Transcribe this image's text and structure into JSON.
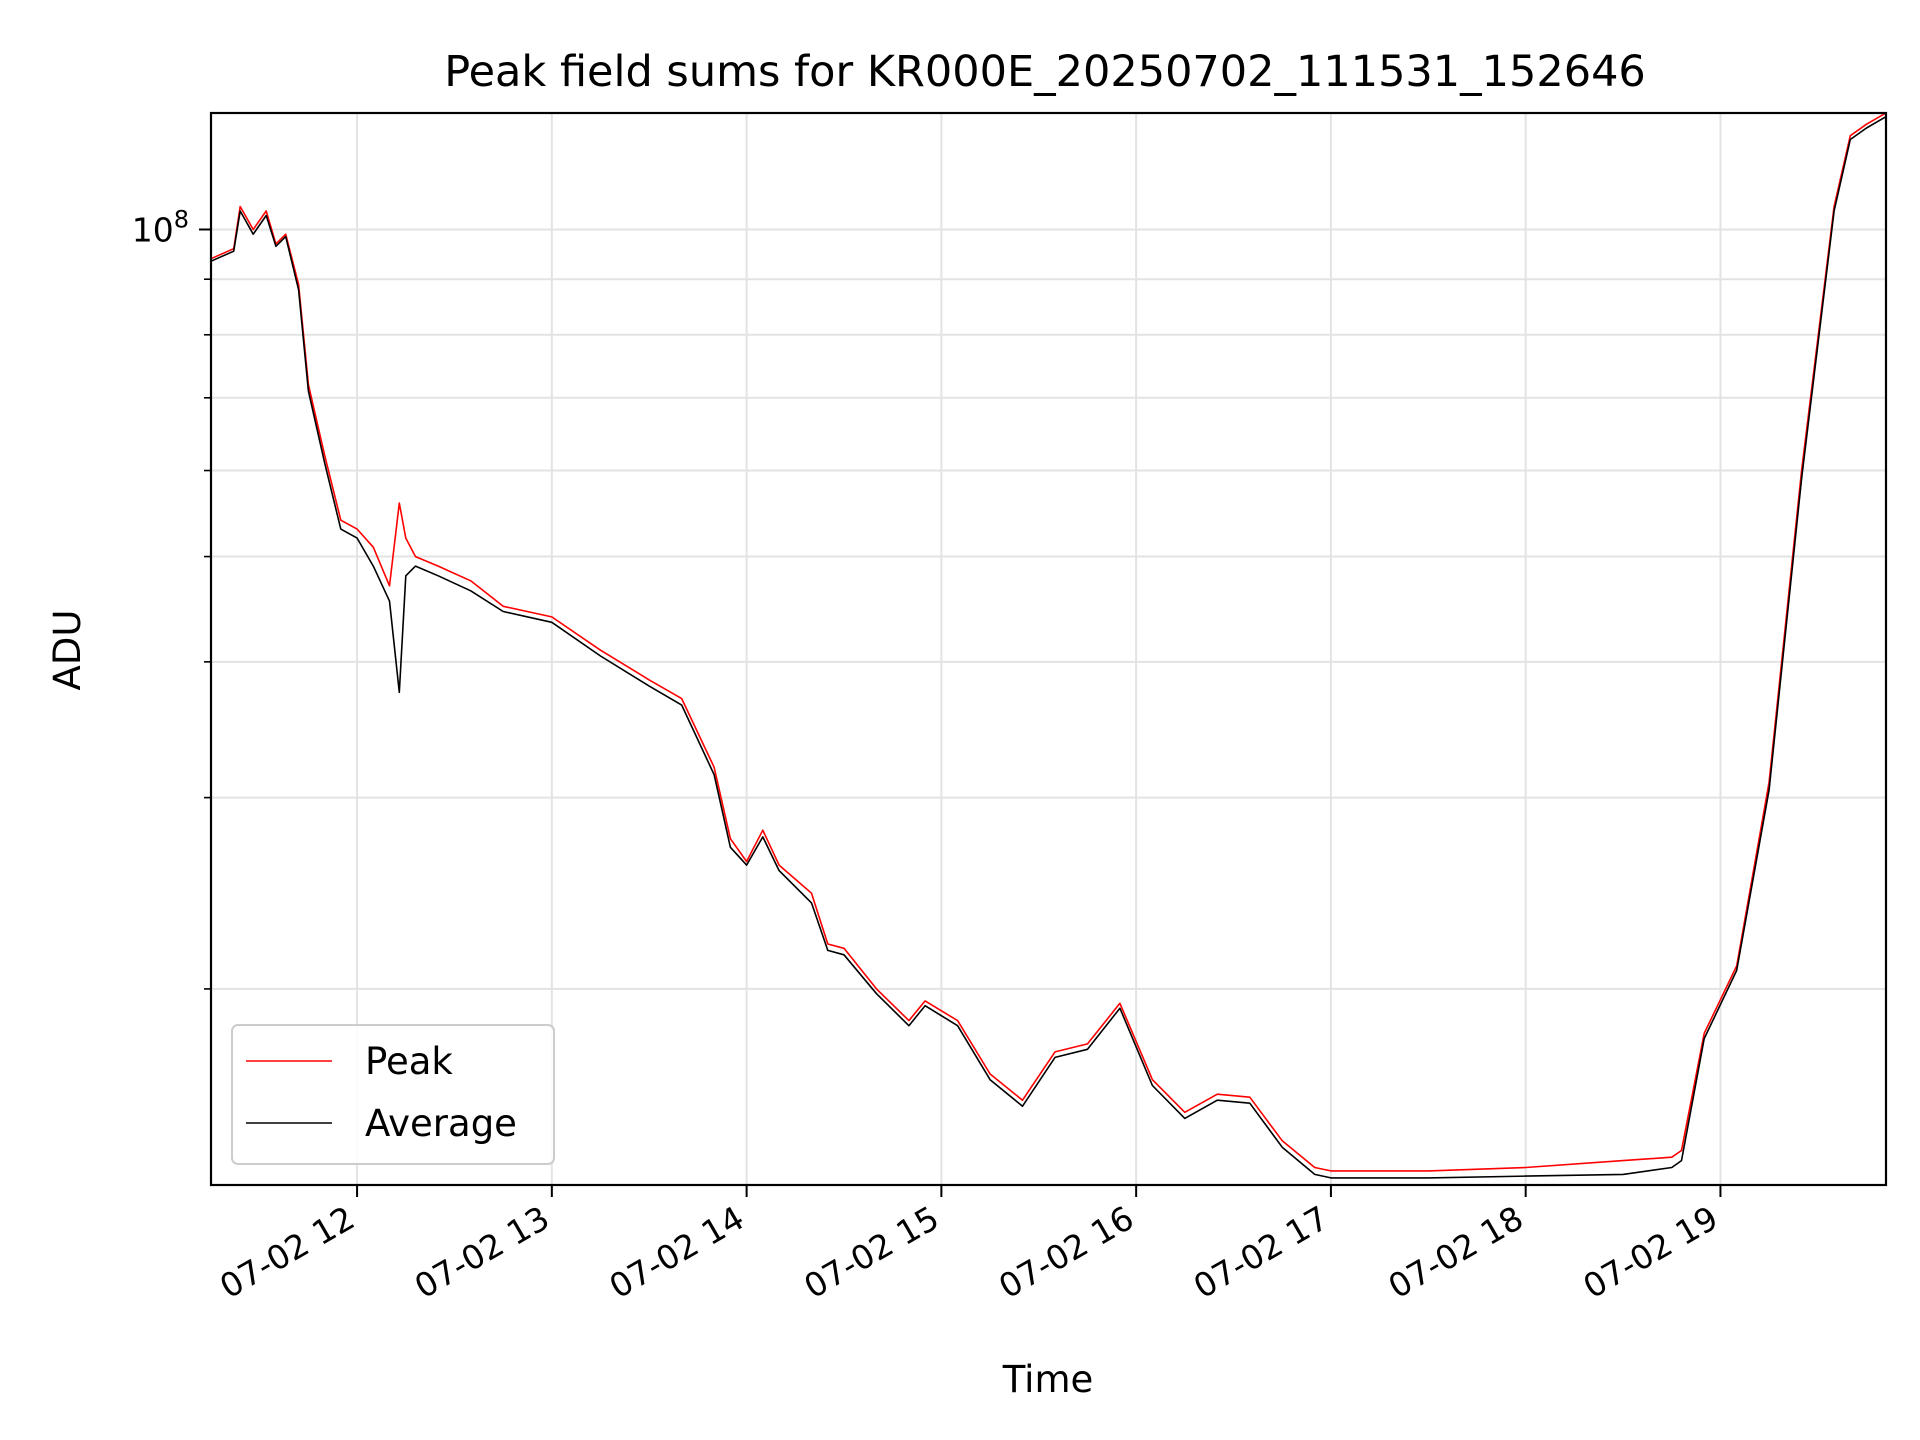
{
  "chart_data": {
    "type": "line",
    "title": "Peak field sums for KR000E_20250702_111531_152646",
    "xlabel": "Time",
    "ylabel": "ADU",
    "y_scale": "log",
    "y_major_tick": {
      "value": 100000000,
      "label_base": "10",
      "label_exp": "8"
    },
    "y_minor_ticks": [
      20000000,
      30000000,
      40000000,
      50000000,
      60000000,
      70000000,
      80000000,
      90000000,
      200000000
    ],
    "ylim": [
      13200000,
      128000000
    ],
    "xlim": [
      "2025-07-02 11:15",
      "2025-07-02 19:51"
    ],
    "x_ticks": [
      {
        "t": "2025-07-02 12:00",
        "label": "07-02 12"
      },
      {
        "t": "2025-07-02 13:00",
        "label": "07-02 13"
      },
      {
        "t": "2025-07-02 14:00",
        "label": "07-02 14"
      },
      {
        "t": "2025-07-02 15:00",
        "label": "07-02 15"
      },
      {
        "t": "2025-07-02 16:00",
        "label": "07-02 16"
      },
      {
        "t": "2025-07-02 17:00",
        "label": "07-02 17"
      },
      {
        "t": "2025-07-02 18:00",
        "label": "07-02 18"
      },
      {
        "t": "2025-07-02 19:00",
        "label": "07-02 19"
      }
    ],
    "grid": true,
    "legend_position": "lower-left",
    "series": [
      {
        "name": "Peak",
        "color": "#ff0000",
        "x": [
          "2025-07-02 11:15",
          "2025-07-02 11:22",
          "2025-07-02 11:24",
          "2025-07-02 11:28",
          "2025-07-02 11:32",
          "2025-07-02 11:35",
          "2025-07-02 11:38",
          "2025-07-02 11:42",
          "2025-07-02 11:45",
          "2025-07-02 11:50",
          "2025-07-02 11:55",
          "2025-07-02 12:00",
          "2025-07-02 12:05",
          "2025-07-02 12:10",
          "2025-07-02 12:13",
          "2025-07-02 12:15",
          "2025-07-02 12:18",
          "2025-07-02 12:25",
          "2025-07-02 12:35",
          "2025-07-02 12:45",
          "2025-07-02 13:00",
          "2025-07-02 13:15",
          "2025-07-02 13:30",
          "2025-07-02 13:40",
          "2025-07-02 13:50",
          "2025-07-02 13:55",
          "2025-07-02 14:00",
          "2025-07-02 14:05",
          "2025-07-02 14:10",
          "2025-07-02 14:20",
          "2025-07-02 14:25",
          "2025-07-02 14:30",
          "2025-07-02 14:40",
          "2025-07-02 14:50",
          "2025-07-02 14:55",
          "2025-07-02 15:05",
          "2025-07-02 15:15",
          "2025-07-02 15:25",
          "2025-07-02 15:35",
          "2025-07-02 15:45",
          "2025-07-02 15:55",
          "2025-07-02 16:05",
          "2025-07-02 16:15",
          "2025-07-02 16:25",
          "2025-07-02 16:35",
          "2025-07-02 16:45",
          "2025-07-02 16:55",
          "2025-07-02 17:00",
          "2025-07-02 17:30",
          "2025-07-02 18:00",
          "2025-07-02 18:30",
          "2025-07-02 18:45",
          "2025-07-02 18:48",
          "2025-07-02 18:55",
          "2025-07-02 19:05",
          "2025-07-02 19:15",
          "2025-07-02 19:25",
          "2025-07-02 19:35",
          "2025-07-02 19:40",
          "2025-07-02 19:45",
          "2025-07-02 19:51"
        ],
        "y": [
          94000000,
          96000000,
          105000000,
          100000000,
          104000000,
          97000000,
          99000000,
          89000000,
          72000000,
          62000000,
          54000000,
          53000000,
          51000000,
          47000000,
          56000000,
          52000000,
          50000000,
          49000000,
          47500000,
          45000000,
          44000000,
          41000000,
          38500000,
          37000000,
          32000000,
          27500000,
          26200000,
          28000000,
          26000000,
          24500000,
          22000000,
          21800000,
          20000000,
          18700000,
          19500000,
          18700000,
          16700000,
          15800000,
          17500000,
          17800000,
          19400000,
          16500000,
          15400000,
          16000000,
          15900000,
          14500000,
          13700000,
          13600000,
          13600000,
          13700000,
          13900000,
          14000000,
          14200000,
          18200000,
          21000000,
          31000000,
          60000000,
          105000000,
          122000000,
          125000000,
          128000000
        ]
      },
      {
        "name": "Average",
        "color": "#000000",
        "x": [
          "2025-07-02 11:15",
          "2025-07-02 11:22",
          "2025-07-02 11:24",
          "2025-07-02 11:28",
          "2025-07-02 11:32",
          "2025-07-02 11:35",
          "2025-07-02 11:38",
          "2025-07-02 11:42",
          "2025-07-02 11:45",
          "2025-07-02 11:50",
          "2025-07-02 11:55",
          "2025-07-02 12:00",
          "2025-07-02 12:05",
          "2025-07-02 12:10",
          "2025-07-02 12:13",
          "2025-07-02 12:15",
          "2025-07-02 12:18",
          "2025-07-02 12:25",
          "2025-07-02 12:35",
          "2025-07-02 12:45",
          "2025-07-02 13:00",
          "2025-07-02 13:15",
          "2025-07-02 13:30",
          "2025-07-02 13:40",
          "2025-07-02 13:50",
          "2025-07-02 13:55",
          "2025-07-02 14:00",
          "2025-07-02 14:05",
          "2025-07-02 14:10",
          "2025-07-02 14:20",
          "2025-07-02 14:25",
          "2025-07-02 14:30",
          "2025-07-02 14:40",
          "2025-07-02 14:50",
          "2025-07-02 14:55",
          "2025-07-02 15:05",
          "2025-07-02 15:15",
          "2025-07-02 15:25",
          "2025-07-02 15:35",
          "2025-07-02 15:45",
          "2025-07-02 15:55",
          "2025-07-02 16:05",
          "2025-07-02 16:15",
          "2025-07-02 16:25",
          "2025-07-02 16:35",
          "2025-07-02 16:45",
          "2025-07-02 16:55",
          "2025-07-02 17:00",
          "2025-07-02 17:30",
          "2025-07-02 18:00",
          "2025-07-02 18:30",
          "2025-07-02 18:45",
          "2025-07-02 18:48",
          "2025-07-02 18:55",
          "2025-07-02 19:05",
          "2025-07-02 19:15",
          "2025-07-02 19:25",
          "2025-07-02 19:35",
          "2025-07-02 19:40",
          "2025-07-02 19:45",
          "2025-07-02 19:51"
        ],
        "y": [
          93500000,
          95500000,
          104000000,
          99000000,
          103000000,
          96500000,
          98500000,
          88000000,
          71000000,
          61000000,
          53000000,
          52000000,
          49000000,
          45500000,
          37500000,
          48000000,
          49000000,
          48000000,
          46500000,
          44500000,
          43500000,
          40500000,
          38000000,
          36500000,
          31500000,
          27000000,
          26000000,
          27600000,
          25700000,
          24000000,
          21700000,
          21500000,
          19800000,
          18500000,
          19300000,
          18500000,
          16500000,
          15600000,
          17300000,
          17600000,
          19200000,
          16300000,
          15200000,
          15800000,
          15700000,
          14300000,
          13500000,
          13400000,
          13400000,
          13450000,
          13500000,
          13700000,
          13900000,
          18000000,
          20800000,
          30500000,
          59000000,
          104000000,
          121000000,
          124000000,
          127000000
        ]
      }
    ]
  }
}
